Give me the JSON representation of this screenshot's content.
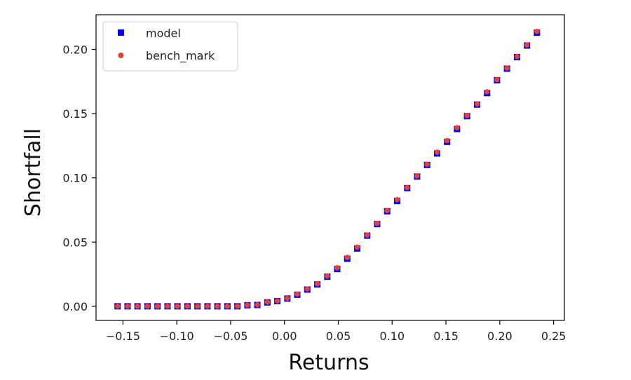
{
  "chart_data": {
    "type": "scatter",
    "title": "",
    "xlabel": "Returns",
    "ylabel": "Shortfall",
    "xlim": [
      -0.175,
      0.26
    ],
    "ylim": [
      -0.011,
      0.227
    ],
    "xticks": [
      -0.15,
      -0.1,
      -0.05,
      0.0,
      0.05,
      0.1,
      0.15,
      0.2,
      0.25
    ],
    "xtick_labels": [
      "−0.15",
      "−0.10",
      "−0.05",
      "0.00",
      "0.05",
      "0.10",
      "0.15",
      "0.20",
      "0.25"
    ],
    "yticks": [
      0.0,
      0.05,
      0.1,
      0.15,
      0.2
    ],
    "ytick_labels": [
      "0.00",
      "0.05",
      "0.10",
      "0.15",
      "0.20"
    ],
    "grid": false,
    "legend_position": "top-left",
    "x": [
      -0.155,
      -0.1457,
      -0.1365,
      -0.1272,
      -0.1179,
      -0.1086,
      -0.0994,
      -0.0901,
      -0.0808,
      -0.0715,
      -0.0623,
      -0.053,
      -0.0437,
      -0.0344,
      -0.0252,
      -0.0159,
      -0.0066,
      0.0027,
      0.0119,
      0.0212,
      0.0305,
      0.0398,
      0.049,
      0.0583,
      0.0676,
      0.0769,
      0.0861,
      0.0954,
      0.1047,
      0.114,
      0.1232,
      0.1325,
      0.1418,
      0.1511,
      0.1603,
      0.1696,
      0.1789,
      0.1882,
      0.1974,
      0.2067,
      0.216,
      0.2253,
      0.2345
    ],
    "series": [
      {
        "name": "model",
        "marker": "square",
        "color": "#0000ff",
        "values": [
          0.0,
          0.0,
          0.0,
          0.0,
          0.0,
          0.0,
          0.0,
          0.0,
          0.0,
          0.0,
          0.0,
          0.0,
          0.0,
          0.0008,
          0.001,
          0.003,
          0.004,
          0.006,
          0.009,
          0.013,
          0.017,
          0.023,
          0.029,
          0.037,
          0.045,
          0.055,
          0.064,
          0.074,
          0.082,
          0.092,
          0.101,
          0.11,
          0.119,
          0.128,
          0.138,
          0.148,
          0.157,
          0.166,
          0.176,
          0.185,
          0.194,
          0.203,
          0.213
        ]
      },
      {
        "name": "bench_mark",
        "marker": "circle",
        "color": "#e8412c",
        "values": [
          0.0,
          0.0,
          0.0,
          0.0,
          0.0,
          0.0,
          0.0,
          0.0,
          0.0,
          0.0,
          0.0,
          0.0,
          0.0,
          0.001,
          0.0012,
          0.0032,
          0.0042,
          0.0062,
          0.0095,
          0.0135,
          0.0175,
          0.0235,
          0.03,
          0.038,
          0.046,
          0.0555,
          0.0645,
          0.0745,
          0.083,
          0.0925,
          0.1015,
          0.1105,
          0.12,
          0.129,
          0.139,
          0.1485,
          0.1575,
          0.167,
          0.1765,
          0.1855,
          0.1945,
          0.2035,
          0.214
        ]
      }
    ]
  }
}
